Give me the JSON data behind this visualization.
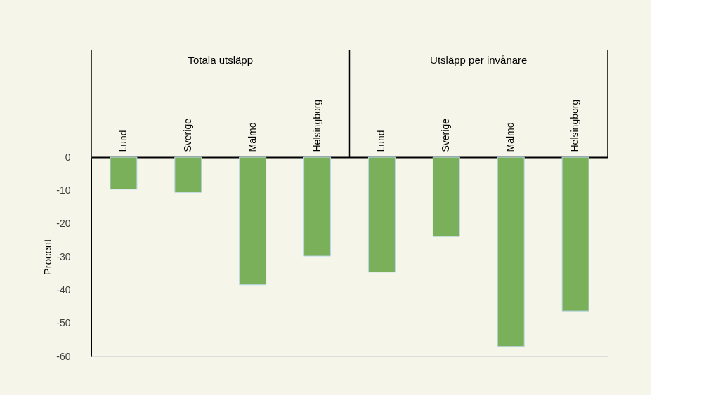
{
  "chart_data": {
    "type": "bar",
    "ylabel": "Procent",
    "categories": [
      "Lund",
      "Sverige",
      "Malmö",
      "Helsingborg",
      "Lund",
      "Sverige",
      "Malmö",
      "Helsingborg"
    ],
    "values": [
      -9.7,
      -10.6,
      -38.4,
      -29.8,
      -34.6,
      -23.9,
      -57.0,
      -46.3
    ],
    "color": "#7ab05a",
    "annotations": [
      "Totala utsläpp",
      "Utsläpp per invånare"
    ],
    "ylim": [
      -60,
      0
    ],
    "yticks": [
      0,
      -10,
      -20,
      -30,
      -40,
      -50,
      -60
    ],
    "grid": false
  }
}
